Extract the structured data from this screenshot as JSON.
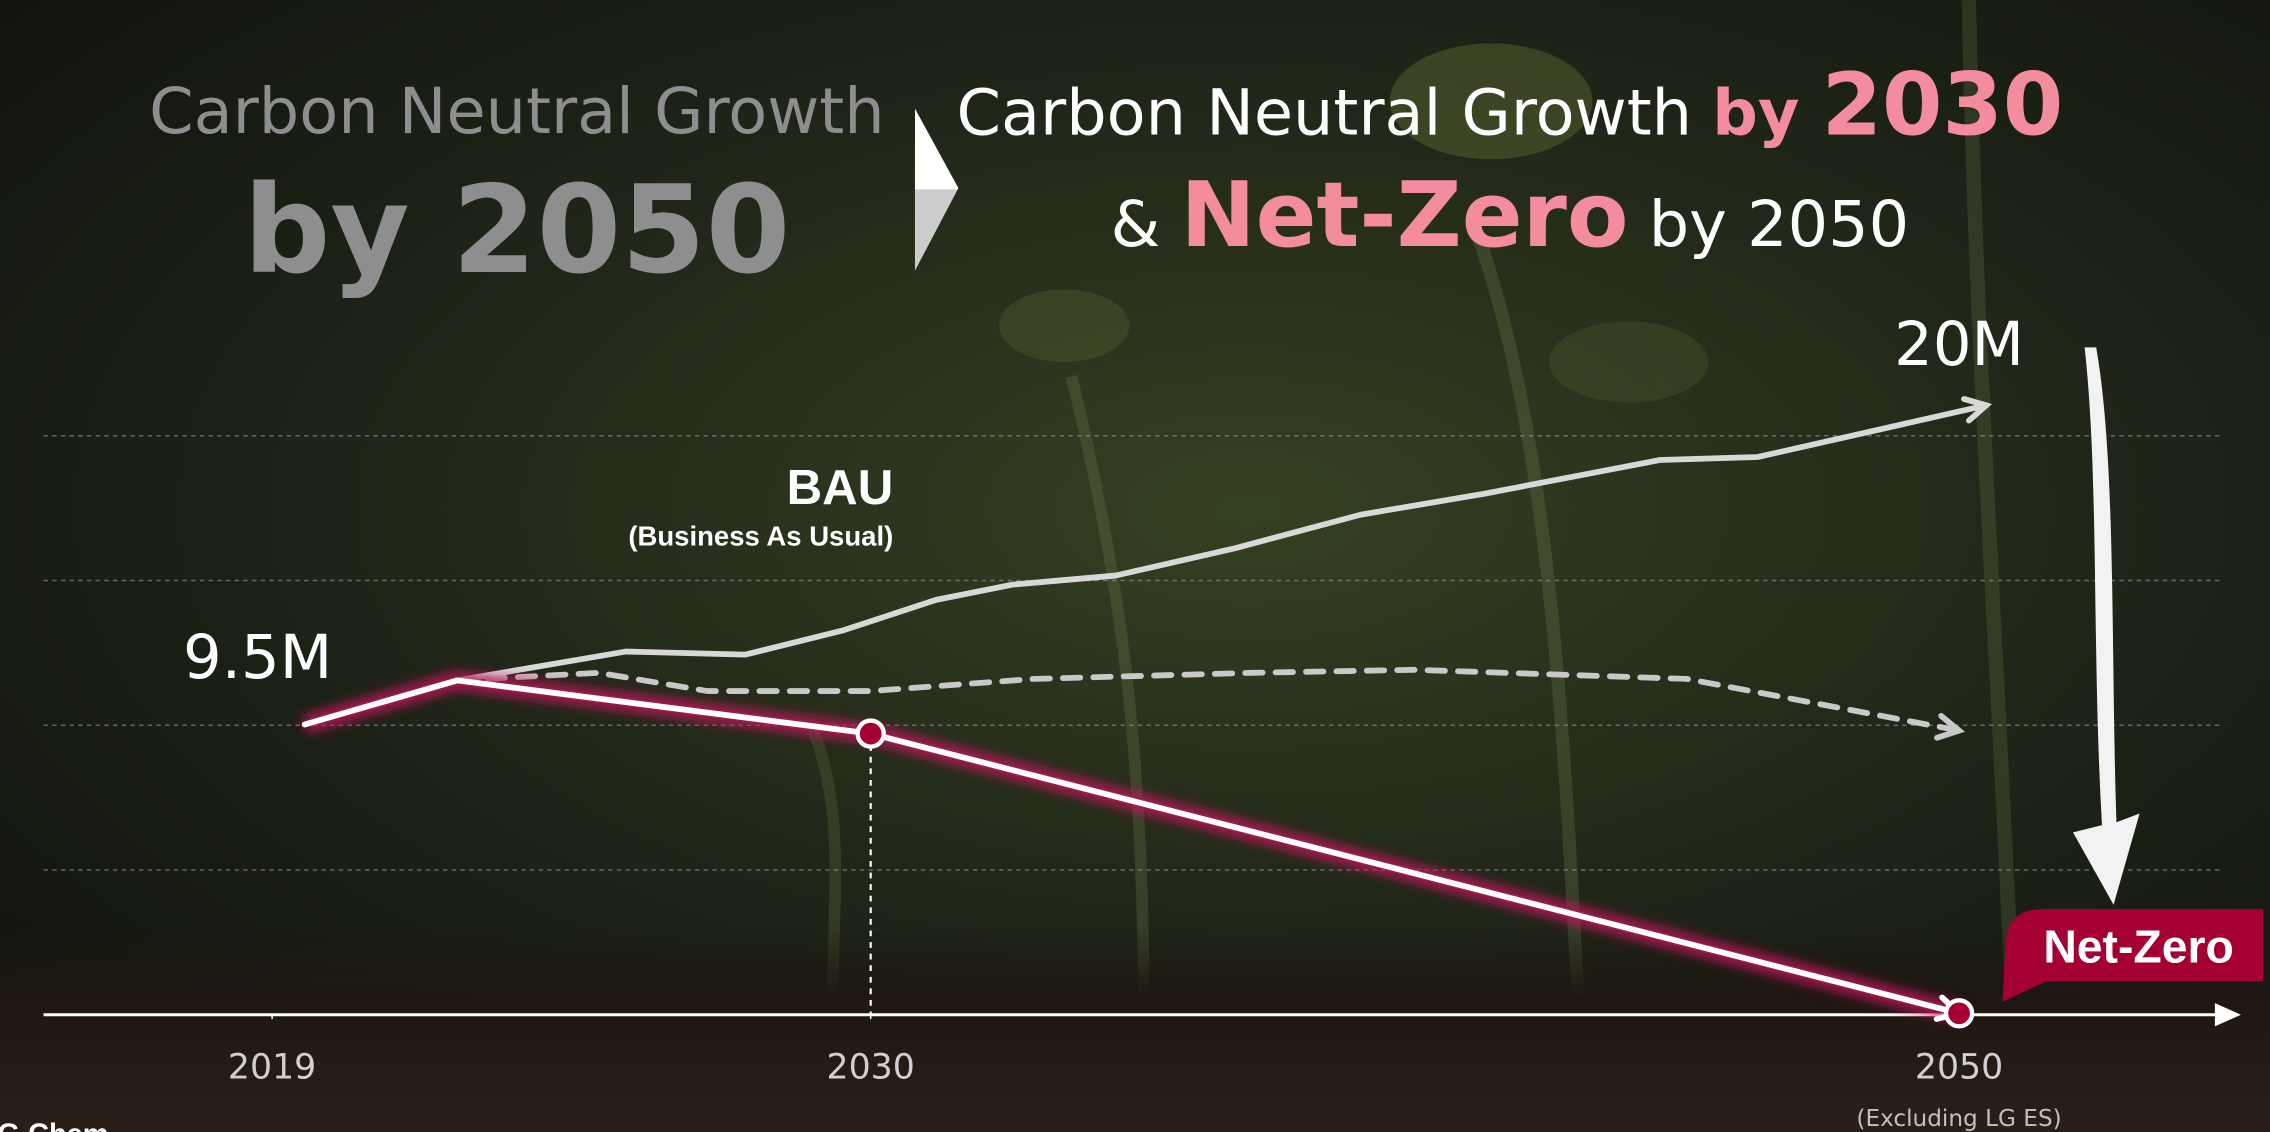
{
  "heading_left": {
    "line1": "Carbon Neutral Growth",
    "line2": "by 2050"
  },
  "heading_right": {
    "line1": [
      "Carbon Neutral Growth ",
      "by ",
      "2030"
    ],
    "line2": [
      "& ",
      "Net-Zero",
      " by 2050"
    ]
  },
  "chart_data": {
    "type": "line",
    "xlim": [
      2014.8,
      2055.1
    ],
    "ylim": [
      0,
      20
    ],
    "xticks": [
      2019,
      2030,
      2050
    ],
    "x_note": "(Excluding LG ES)",
    "series": [
      {
        "name": "BAU",
        "subtitle": "(Business As Usual)",
        "color": "#d8d8d8",
        "style": "solid",
        "x": [
          2019.6,
          2022.4,
          2025.5,
          2027.7,
          2029.5,
          2031.2,
          2032.6,
          2034.5,
          2036.7,
          2039.0,
          2041.3,
          2044.5,
          2046.3,
          2050.5
        ],
        "values": [
          9.5,
          10.95,
          11.9,
          11.8,
          12.6,
          13.6,
          14.1,
          14.4,
          15.3,
          16.4,
          17.1,
          18.2,
          18.3,
          20
        ]
      },
      {
        "color": "#c9c9c9",
        "style": "dashed",
        "x": [
          2022.4,
          2025.0,
          2027.0,
          2030.0,
          2033.0,
          2037.0,
          2040.0,
          2045.0,
          2050.0
        ],
        "values": [
          10.95,
          11.2,
          10.6,
          10.6,
          11.0,
          11.2,
          11.3,
          11.0,
          9.3
        ]
      },
      {
        "name": "Net-Zero",
        "color": "#ffffff",
        "glow": "#c2185b",
        "style": "solid",
        "x": [
          2019.6,
          2022.4,
          2030,
          2050
        ],
        "values": [
          9.5,
          10.95,
          9.2,
          0
        ]
      }
    ],
    "annotations": [
      {
        "text": "9.5M",
        "x": 2019,
        "y": 9.5
      },
      {
        "text": "20M",
        "x": 2050,
        "y": 20
      }
    ],
    "source": "LG Chem"
  }
}
